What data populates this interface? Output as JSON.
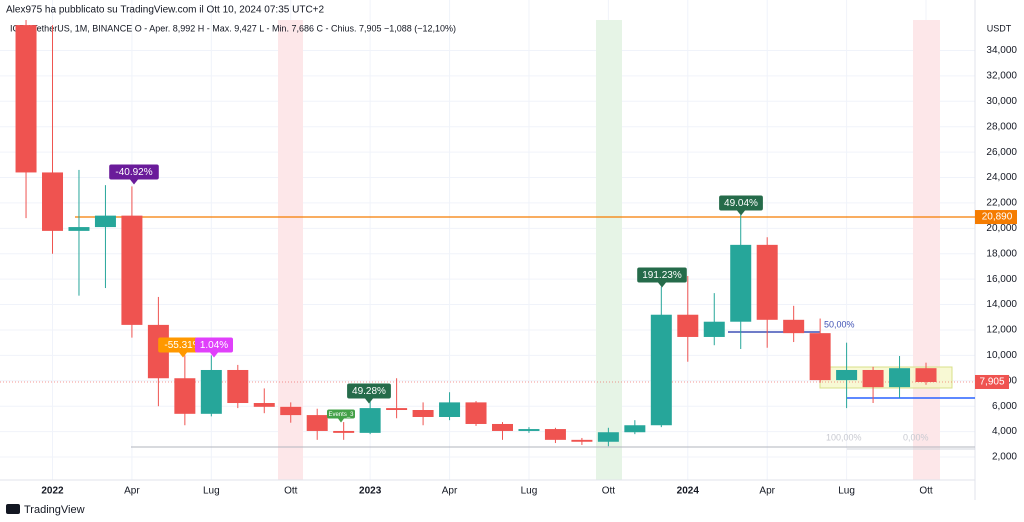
{
  "chart_data": {
    "type": "candlestick",
    "title": "Alex975 ha pubblicato su TradingView.com il Ott 10, 2024 07:35 UTC+2",
    "subtitle": "ICP / TetherUS, 1M, BINANCE  O - Aper. 8,992  H - Max. 9,427  L - Min. 7,686  C - Chius. 7,905  −1,088 (−12,10%)",
    "y_label": "USDT",
    "footer": "TradingView",
    "categories": [
      null,
      "2022",
      null,
      null,
      "Apr",
      null,
      null,
      "Lug",
      null,
      null,
      "Ott",
      null,
      null,
      "2023",
      null,
      null,
      "Apr",
      null,
      null,
      "Lug",
      null,
      null,
      "Ott",
      null,
      null,
      "2024",
      null,
      null,
      "Apr",
      null,
      null,
      "Lug",
      null,
      null,
      "Ott"
    ],
    "open": [
      36000,
      24400,
      19800,
      20100,
      21000,
      12400,
      8200,
      5400,
      8850,
      6250,
      5950,
      5300,
      4050,
      3900,
      5850,
      5700,
      5150,
      6300,
      4600,
      4050,
      4200,
      3350,
      3200,
      3950,
      4500,
      13200,
      11450,
      12650,
      18700,
      12800,
      11750,
      8050,
      8850,
      7500,
      8992
    ],
    "high": [
      36400,
      36000,
      24600,
      23400,
      23300,
      14600,
      10000,
      10000,
      9250,
      7400,
      6300,
      5800,
      4750,
      7100,
      8200,
      6300,
      7100,
      6400,
      4750,
      4350,
      4300,
      3500,
      4300,
      4900,
      15400,
      16250,
      14900,
      21050,
      19300,
      13900,
      12900,
      11000,
      9100,
      9950,
      9427
    ],
    "low": [
      20800,
      18000,
      14700,
      15300,
      11400,
      6000,
      4500,
      5200,
      5850,
      5450,
      4700,
      3350,
      3350,
      3800,
      5050,
      4500,
      4900,
      4450,
      3350,
      3900,
      3100,
      2950,
      2850,
      3800,
      4350,
      9500,
      10800,
      10500,
      10600,
      11050,
      7850,
      5850,
      6250,
      6650,
      7686
    ],
    "close": [
      24400,
      19800,
      20100,
      21000,
      12400,
      8200,
      5400,
      8850,
      6250,
      5950,
      5300,
      4050,
      3900,
      5850,
      5700,
      5150,
      6300,
      4600,
      4050,
      4200,
      3350,
      3200,
      3950,
      4500,
      13200,
      11450,
      12650,
      18700,
      12800,
      11750,
      8050,
      8850,
      7500,
      8992,
      7905
    ],
    "up_color": "#26a69a",
    "down_color": "#ef5350",
    "ylim": [
      190,
      36400
    ],
    "yticks": [
      {
        "value": 2000,
        "label": "2,000"
      },
      {
        "value": 4000,
        "label": "4,000"
      },
      {
        "value": 6000,
        "label": "6,000"
      },
      {
        "value": 8000,
        "label": "8,000"
      },
      {
        "value": 10000,
        "label": "10,000"
      },
      {
        "value": 12000,
        "label": "12,000"
      },
      {
        "value": 14000,
        "label": "14,000"
      },
      {
        "value": 16000,
        "label": "16,000"
      },
      {
        "value": 18000,
        "label": "18,000"
      },
      {
        "value": 20000,
        "label": "20,000"
      },
      {
        "value": 22000,
        "label": "22,000"
      },
      {
        "value": 24000,
        "label": "24,000"
      },
      {
        "value": 26000,
        "label": "26,000"
      },
      {
        "value": 28000,
        "label": "28,000"
      },
      {
        "value": 30000,
        "label": "30,000"
      },
      {
        "value": 32000,
        "label": "32,000"
      },
      {
        "value": 34000,
        "label": "34,000"
      }
    ],
    "grid": true,
    "level": {
      "value": 20890,
      "label": "20,890",
      "color": "#f57c00"
    },
    "last_price": {
      "value": 7905,
      "label": "7,905",
      "color": "#ef5350"
    },
    "annotations": [
      {
        "text": "-40.92%",
        "color": "#6a1b9a"
      },
      {
        "text": "-55.31%",
        "color": "#ff9800"
      },
      {
        "text": "1.04%",
        "color": "#e040fb"
      },
      {
        "text": "Events_3",
        "color": "#43a047"
      },
      {
        "text": "49.28%",
        "color": "#256b4a"
      },
      {
        "text": "191.23%",
        "color": "#256b4a"
      },
      {
        "text": "49.04%",
        "color": "#256b4a"
      }
    ],
    "fib_labels": [
      "50,00%",
      "100,00%",
      "0,00%"
    ]
  }
}
